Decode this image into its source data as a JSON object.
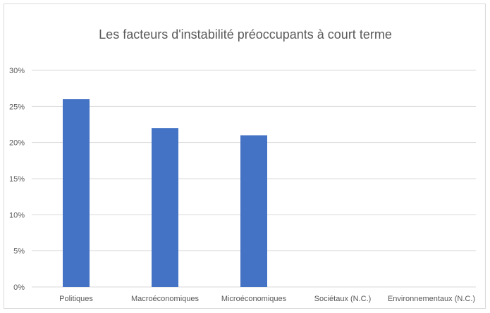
{
  "chart_data": {
    "type": "bar",
    "title": "Les facteurs d'instabilité préoccupants à court terme",
    "categories": [
      "Politiques",
      "Macroéconomiques",
      "Microéconomiques",
      "Sociétaux (N.C.)",
      "Environnementaux (N.C.)"
    ],
    "values": [
      26,
      22,
      21,
      0,
      0
    ],
    "unit": "%",
    "ylim": [
      0,
      30
    ],
    "yticks": [
      "0%",
      "5%",
      "10%",
      "15%",
      "20%",
      "25%",
      "30%"
    ],
    "grid": true,
    "legend": "none",
    "bar_color": "#4472c4",
    "grid_color": "#d9d9d9",
    "text_color": "#595959"
  }
}
